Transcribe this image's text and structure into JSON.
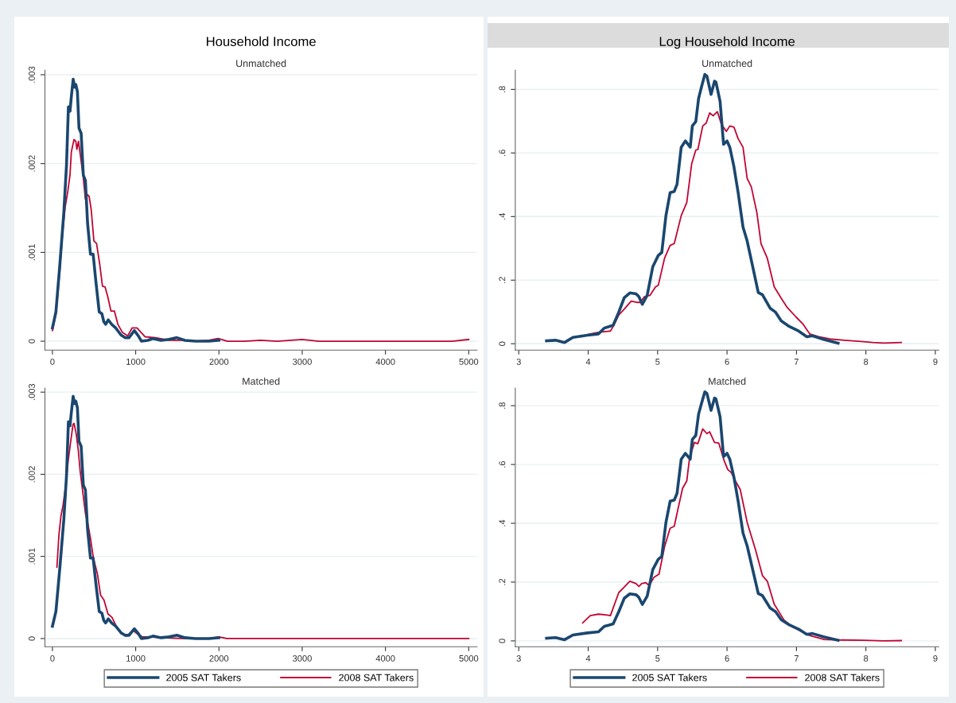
{
  "chart_data": [
    {
      "type": "line",
      "title": "Household Income",
      "subtitle": "Unmatched",
      "xlim": [
        -90,
        5100
      ],
      "xticks": [
        0,
        1000,
        2000,
        3000,
        4000,
        5000
      ],
      "ylim": [
        -0.0001,
        0.00305
      ],
      "yticks": [
        0,
        {
          "value": 0.001,
          "label": ".001"
        },
        {
          "value": 0.002,
          "label": ".002"
        },
        {
          "value": 0.003,
          "label": ".003"
        }
      ],
      "grid": "y",
      "legend": false,
      "series": [
        {
          "color": "#1a476f",
          "x": [
            0,
            42,
            89,
            137,
            169,
            192,
            211,
            227,
            249,
            268,
            281,
            300,
            319,
            345,
            371,
            396,
            422,
            457,
            489,
            521,
            562,
            594,
            617,
            639,
            671,
            712,
            760,
            824,
            872,
            920,
            984,
            1032,
            1070,
            1144,
            1208,
            1304,
            1399,
            1495,
            1591,
            1719,
            1879,
            1999
          ],
          "values": [
            0.00015,
            0.00033,
            0.00086,
            0.00145,
            0.00198,
            0.00264,
            0.00259,
            0.00275,
            0.00295,
            0.00286,
            0.00289,
            0.00281,
            0.0024,
            0.00234,
            0.00187,
            0.00181,
            0.00133,
            0.00098,
            0.00098,
            0.00068,
            0.00033,
            0.00031,
            0.00022,
            0.00019,
            0.00024,
            0.00019,
            0.00015,
            7e-05,
            4e-05,
            4e-05,
            0.00012,
            6e-05,
            0,
            1e-05,
            3e-05,
            1e-05,
            2e-05,
            4e-05,
            1e-05,
            0,
            0,
            1e-05
          ]
        },
        {
          "color": "#c10534",
          "x": [
            0,
            42,
            89,
            121,
            153,
            185,
            211,
            227,
            259,
            281,
            294,
            313,
            339,
            371,
            396,
            409,
            441,
            466,
            498,
            530,
            569,
            601,
            633,
            665,
            703,
            744,
            786,
            840,
            904,
            958,
            1016,
            1064,
            1112,
            1240,
            1399,
            1559,
            1719,
            1879,
            1990,
            2102,
            2300,
            2500,
            2700,
            3000,
            3200,
            4000,
            4800,
            5000
          ],
          "values": [
            0.00012,
            0.0003,
            0.0008,
            0.00121,
            0.00151,
            0.00169,
            0.00187,
            0.00213,
            0.00227,
            0.00225,
            0.00216,
            0.00225,
            0.00207,
            0.00184,
            0.0016,
            0.00166,
            0.00163,
            0.00148,
            0.00113,
            0.0011,
            0.00086,
            0.00062,
            0.00061,
            0.0005,
            0.00034,
            0.00034,
            0.00019,
            0.0001,
            6e-05,
            0.00015,
            0.00015,
            0.0001,
            5e-05,
            4e-05,
            1e-05,
            1e-05,
            0,
            1e-05,
            3e-05,
            0,
            0,
            1e-05,
            0,
            2e-05,
            0,
            0,
            0,
            2e-05
          ]
        }
      ]
    },
    {
      "type": "line",
      "title": "Log Household Income",
      "subtitle": "Unmatched",
      "xlim": [
        2.95,
        9.05
      ],
      "xticks": [
        3,
        4,
        5,
        6,
        7,
        8,
        9
      ],
      "ylim": [
        -0.02,
        0.86
      ],
      "yticks": [
        0,
        {
          "value": 0.2,
          "label": ".2"
        },
        {
          "value": 0.4,
          "label": ".4"
        },
        {
          "value": 0.6,
          "label": ".6"
        },
        {
          "value": 0.8,
          "label": ".8"
        }
      ],
      "grid": "y",
      "legend": false,
      "series": [
        {
          "color": "#1a476f",
          "x": [
            3.4,
            3.53,
            3.66,
            3.78,
            3.99,
            4.15,
            4.23,
            4.36,
            4.44,
            4.52,
            4.6,
            4.69,
            4.73,
            4.78,
            4.85,
            4.93,
            5.01,
            5.06,
            5.12,
            5.18,
            5.24,
            5.28,
            5.34,
            5.4,
            5.47,
            5.5,
            5.55,
            5.59,
            5.63,
            5.68,
            5.71,
            5.77,
            5.82,
            5.84,
            5.9,
            5.95,
            6.0,
            6.04,
            6.1,
            6.16,
            6.23,
            6.29,
            6.37,
            6.45,
            6.51,
            6.62,
            6.7,
            6.78,
            6.9,
            7.03,
            7.15,
            7.23,
            7.4,
            7.6
          ],
          "values": [
            0.009,
            0.011,
            0.004,
            0.02,
            0.027,
            0.031,
            0.049,
            0.058,
            0.099,
            0.145,
            0.16,
            0.157,
            0.148,
            0.124,
            0.152,
            0.242,
            0.278,
            0.287,
            0.403,
            0.475,
            0.479,
            0.502,
            0.618,
            0.638,
            0.618,
            0.685,
            0.699,
            0.771,
            0.806,
            0.847,
            0.842,
            0.784,
            0.826,
            0.823,
            0.762,
            0.627,
            0.638,
            0.618,
            0.556,
            0.475,
            0.367,
            0.323,
            0.242,
            0.161,
            0.154,
            0.112,
            0.099,
            0.072,
            0.054,
            0.04,
            0.022,
            0.025,
            0.013,
            0.002
          ]
        },
        {
          "color": "#c10534",
          "x": [
            3.9,
            4.03,
            4.15,
            4.32,
            4.36,
            4.44,
            4.52,
            4.62,
            4.71,
            4.75,
            4.81,
            4.89,
            4.97,
            5.01,
            5.1,
            5.18,
            5.24,
            5.34,
            5.42,
            5.49,
            5.55,
            5.58,
            5.65,
            5.7,
            5.75,
            5.8,
            5.86,
            5.92,
            5.99,
            6.04,
            6.1,
            6.16,
            6.23,
            6.29,
            6.35,
            6.43,
            6.49,
            6.58,
            6.68,
            6.78,
            6.86,
            6.99,
            7.09,
            7.19,
            7.32,
            7.48,
            7.69,
            7.93,
            8.1,
            8.26,
            8.51
          ],
          "values": [
            0.022,
            0.031,
            0.036,
            0.04,
            0.054,
            0.09,
            0.109,
            0.134,
            0.13,
            0.13,
            0.148,
            0.152,
            0.179,
            0.184,
            0.269,
            0.309,
            0.315,
            0.403,
            0.444,
            0.565,
            0.609,
            0.611,
            0.685,
            0.694,
            0.726,
            0.717,
            0.73,
            0.69,
            0.668,
            0.685,
            0.681,
            0.645,
            0.618,
            0.52,
            0.493,
            0.412,
            0.314,
            0.269,
            0.179,
            0.143,
            0.116,
            0.085,
            0.063,
            0.031,
            0.022,
            0.015,
            0.011,
            0.007,
            0.004,
            0.002,
            0.004
          ]
        }
      ]
    },
    {
      "type": "line",
      "subtitle": "Matched",
      "xlim": [
        -90,
        5100
      ],
      "xticks": [
        0,
        1000,
        2000,
        3000,
        4000,
        5000
      ],
      "ylim": [
        -0.0001,
        0.00305
      ],
      "yticks": [
        0,
        {
          "value": 0.001,
          "label": ".001"
        },
        {
          "value": 0.002,
          "label": ".002"
        },
        {
          "value": 0.003,
          "label": ".003"
        }
      ],
      "grid": "y",
      "legend": "bottom",
      "series": [
        {
          "name": "2005 SAT Takers",
          "color": "#1a476f",
          "x": [
            0,
            42,
            89,
            137,
            169,
            192,
            211,
            227,
            249,
            268,
            281,
            300,
            319,
            345,
            371,
            396,
            422,
            457,
            489,
            521,
            562,
            594,
            617,
            639,
            671,
            712,
            760,
            824,
            872,
            920,
            984,
            1032,
            1070,
            1144,
            1208,
            1304,
            1399,
            1495,
            1591,
            1719,
            1879,
            1999
          ],
          "values": [
            0.00015,
            0.00033,
            0.00086,
            0.00145,
            0.00198,
            0.00264,
            0.00259,
            0.00275,
            0.00295,
            0.00286,
            0.00289,
            0.00281,
            0.0024,
            0.00234,
            0.00187,
            0.00181,
            0.00133,
            0.00098,
            0.00098,
            0.00068,
            0.00033,
            0.00031,
            0.00022,
            0.00019,
            0.00024,
            0.00019,
            0.00015,
            7e-05,
            4e-05,
            4e-05,
            0.00012,
            6e-05,
            0,
            1e-05,
            3e-05,
            1e-05,
            2e-05,
            4e-05,
            1e-05,
            0,
            0,
            1e-05
          ]
        },
        {
          "name": "2008 SAT Takers",
          "color": "#c10534",
          "x": [
            54,
            79,
            102,
            127,
            159,
            190,
            222,
            248,
            260,
            286,
            311,
            333,
            365,
            397,
            429,
            460,
            492,
            540,
            578,
            619,
            667,
            714,
            762,
            825,
            889,
            968,
            1016,
            1079,
            1175,
            1302,
            1556,
            1873,
            2000,
            2095,
            3000,
            4000,
            5000
          ],
          "values": [
            0.00087,
            0.00127,
            0.00149,
            0.00162,
            0.00186,
            0.00217,
            0.00242,
            0.00261,
            0.00262,
            0.00249,
            0.00229,
            0.00204,
            0.00178,
            0.00152,
            0.00138,
            0.0012,
            0.00098,
            0.00079,
            0.00053,
            0.00047,
            0.0003,
            0.00026,
            0.00016,
            6e-05,
            3e-05,
            0.0001,
            6e-05,
            2e-05,
            2e-05,
            1e-05,
            0,
            0,
            2e-05,
            0,
            0,
            0,
            0
          ]
        }
      ]
    },
    {
      "type": "line",
      "subtitle": "Matched",
      "xlim": [
        2.95,
        9.05
      ],
      "xticks": [
        3,
        4,
        5,
        6,
        7,
        8,
        9
      ],
      "ylim": [
        -0.02,
        0.86
      ],
      "yticks": [
        0,
        {
          "value": 0.2,
          "label": ".2"
        },
        {
          "value": 0.4,
          "label": ".4"
        },
        {
          "value": 0.6,
          "label": ".6"
        },
        {
          "value": 0.8,
          "label": ".8"
        }
      ],
      "grid": "y",
      "legend": "bottom",
      "series": [
        {
          "name": "2005 SAT Takers",
          "color": "#1a476f",
          "x": [
            3.4,
            3.53,
            3.66,
            3.78,
            3.99,
            4.15,
            4.23,
            4.36,
            4.44,
            4.52,
            4.6,
            4.69,
            4.73,
            4.78,
            4.85,
            4.93,
            5.01,
            5.06,
            5.12,
            5.18,
            5.24,
            5.28,
            5.34,
            5.4,
            5.47,
            5.5,
            5.55,
            5.59,
            5.63,
            5.68,
            5.71,
            5.77,
            5.82,
            5.84,
            5.9,
            5.95,
            6.0,
            6.04,
            6.1,
            6.16,
            6.23,
            6.29,
            6.37,
            6.45,
            6.51,
            6.62,
            6.7,
            6.78,
            6.9,
            7.03,
            7.15,
            7.23,
            7.4,
            7.6
          ],
          "values": [
            0.009,
            0.011,
            0.004,
            0.02,
            0.027,
            0.031,
            0.049,
            0.058,
            0.099,
            0.145,
            0.16,
            0.157,
            0.148,
            0.124,
            0.152,
            0.242,
            0.278,
            0.287,
            0.403,
            0.475,
            0.479,
            0.502,
            0.618,
            0.638,
            0.618,
            0.685,
            0.699,
            0.771,
            0.806,
            0.847,
            0.842,
            0.784,
            0.826,
            0.823,
            0.762,
            0.627,
            0.638,
            0.618,
            0.556,
            0.475,
            0.367,
            0.323,
            0.242,
            0.161,
            0.154,
            0.112,
            0.099,
            0.072,
            0.054,
            0.04,
            0.022,
            0.025,
            0.013,
            0.002
          ]
        },
        {
          "name": "2008 SAT Takers",
          "color": "#c10534",
          "x": [
            3.92,
            4.03,
            4.15,
            4.27,
            4.32,
            4.44,
            4.52,
            4.6,
            4.69,
            4.73,
            4.77,
            4.83,
            4.88,
            4.95,
            5.02,
            5.1,
            5.18,
            5.24,
            5.3,
            5.36,
            5.42,
            5.46,
            5.53,
            5.58,
            5.65,
            5.71,
            5.75,
            5.82,
            5.88,
            5.96,
            6.01,
            6.06,
            6.12,
            6.19,
            6.29,
            6.41,
            6.51,
            6.58,
            6.68,
            6.82,
            6.95,
            7.07,
            7.19,
            7.4,
            7.64,
            7.97,
            8.26,
            8.51
          ],
          "values": [
            0.061,
            0.086,
            0.091,
            0.088,
            0.086,
            0.164,
            0.183,
            0.203,
            0.195,
            0.185,
            0.195,
            0.198,
            0.188,
            0.217,
            0.227,
            0.32,
            0.383,
            0.39,
            0.456,
            0.519,
            0.544,
            0.622,
            0.675,
            0.671,
            0.721,
            0.705,
            0.711,
            0.675,
            0.673,
            0.612,
            0.583,
            0.573,
            0.544,
            0.515,
            0.403,
            0.31,
            0.222,
            0.203,
            0.125,
            0.071,
            0.047,
            0.032,
            0.018,
            0.005,
            0.003,
            0.002,
            0,
            0.001
          ]
        }
      ]
    }
  ]
}
